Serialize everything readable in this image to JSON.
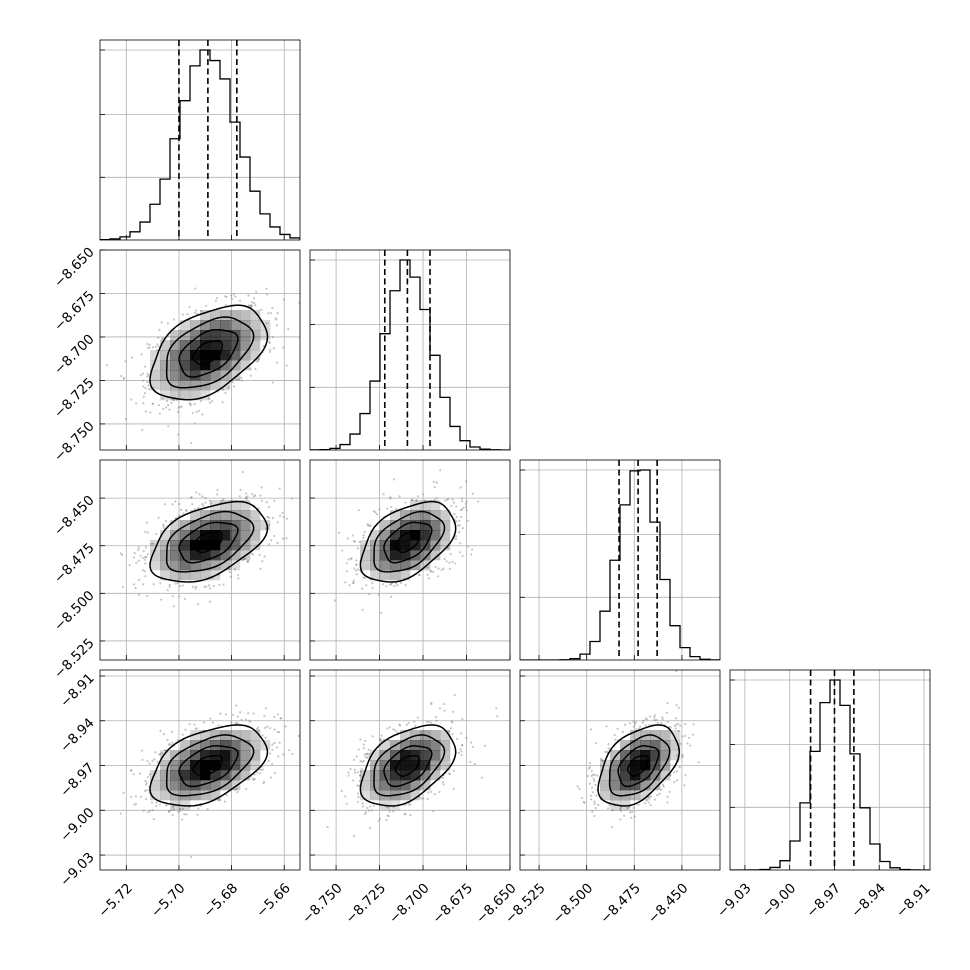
{
  "chart_data": {
    "type": "corner",
    "parameters": [
      {
        "range": [
          -5.73,
          -5.654
        ],
        "ticks": [
          -5.72,
          -5.7,
          -5.68,
          -5.66
        ],
        "tick_labels": [
          "−5.72",
          "−5.70",
          "−5.68",
          "−5.66"
        ],
        "mean": -5.689,
        "sigma": 0.011,
        "quantiles": [
          -5.7,
          -5.689,
          -5.678
        ],
        "hist_max": 1.0
      },
      {
        "range": [
          -8.765,
          -8.65
        ],
        "ticks": [
          -8.75,
          -8.725,
          -8.7,
          -8.675,
          -8.65
        ],
        "tick_labels": [
          "−8.750",
          "−8.725",
          "−8.700",
          "−8.675",
          "−8.650"
        ],
        "mean": -8.709,
        "sigma": 0.0135,
        "quantiles": [
          -8.722,
          -8.709,
          -8.696
        ],
        "hist_max": 1.0
      },
      {
        "range": [
          -8.535,
          -8.43
        ],
        "ticks": [
          -8.525,
          -8.5,
          -8.475,
          -8.45
        ],
        "tick_labels": [
          "−8.525",
          "−8.500",
          "−8.475",
          "−8.450"
        ],
        "mean": -8.473,
        "sigma": 0.0105,
        "quantiles": [
          -8.483,
          -8.473,
          -8.463
        ],
        "hist_max": 1.0
      },
      {
        "range": [
          -9.04,
          -8.906
        ],
        "ticks": [
          -9.03,
          -9.0,
          -8.97,
          -8.94,
          -8.91
        ],
        "tick_labels": [
          "−9.03",
          "−9.00",
          "−8.97",
          "−8.94",
          "−8.91"
        ],
        "mean": -8.97,
        "sigma": 0.0135,
        "quantiles": [
          -8.986,
          -8.97,
          -8.957
        ],
        "hist_max": 1.0
      }
    ],
    "correlation": 0.45,
    "contour_levels_sigma": [
      0.5,
      1.0,
      1.5,
      2.0
    ],
    "hist_bins": 20,
    "grid": true,
    "colors": {
      "line": "#000000",
      "grid": "#b0b0b0",
      "density": "#000000",
      "scatter": "#808080"
    }
  }
}
